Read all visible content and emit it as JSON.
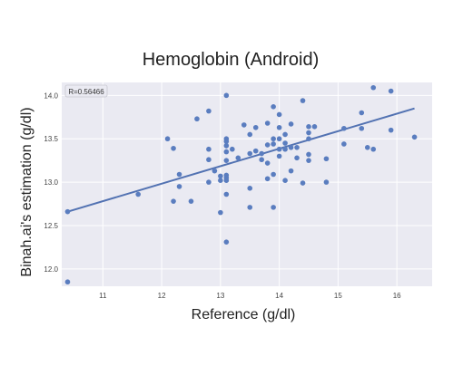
{
  "chart_data": {
    "type": "scatter",
    "title": "Hemoglobin (Android)",
    "xlabel": "Reference (g/dl)",
    "ylabel": "Binah.ai's estimation (g/dl)",
    "annotation": "R=0.56466",
    "xlim": [
      10.3,
      16.6
    ],
    "ylim": [
      11.8,
      14.15
    ],
    "x_ticks": [
      11,
      12,
      13,
      14,
      15,
      16
    ],
    "y_ticks": [
      12.0,
      12.5,
      13.0,
      13.5,
      14.0
    ],
    "x_tick_labels": [
      "11",
      "12",
      "13",
      "14",
      "15",
      "16"
    ],
    "y_tick_labels": [
      "12.0",
      "12.5",
      "13.0",
      "13.5",
      "14.0"
    ],
    "grid": true,
    "colors": {
      "point": "#5a7dbf",
      "line": "#5272b2",
      "plot_background": "#eaeaf2",
      "grid": "#ffffff"
    },
    "regression_line": {
      "x": [
        10.4,
        16.3
      ],
      "y": [
        12.66,
        13.85
      ]
    },
    "series": [
      {
        "x": [
          10.4,
          10.4,
          11.6,
          12.1,
          12.2,
          12.2,
          12.3,
          12.3,
          12.5,
          12.6,
          12.8,
          12.8,
          12.8,
          12.8,
          12.9,
          13.0,
          13.0,
          13.0,
          13.1,
          13.1,
          13.1,
          13.1,
          13.1,
          13.1,
          13.1,
          13.1,
          13.1,
          13.1,
          13.1,
          13.2,
          13.3,
          13.4,
          13.5,
          13.5,
          13.5,
          13.5,
          13.6,
          13.6,
          13.7,
          13.7,
          13.8,
          13.8,
          13.8,
          13.8,
          13.9,
          13.9,
          13.9,
          13.9,
          13.9,
          14.0,
          14.0,
          14.0,
          14.0,
          14.0,
          14.1,
          14.1,
          14.1,
          14.1,
          14.2,
          14.2,
          14.2,
          14.3,
          14.3,
          14.4,
          14.4,
          14.5,
          14.5,
          14.5,
          14.5,
          14.5,
          14.6,
          14.8,
          14.8,
          15.1,
          15.1,
          15.4,
          15.4,
          15.5,
          15.6,
          15.6,
          15.9,
          15.9,
          16.3
        ],
        "y": [
          12.66,
          11.85,
          12.86,
          13.5,
          13.39,
          12.78,
          13.09,
          12.95,
          12.78,
          13.73,
          13.82,
          13.38,
          13.26,
          13.0,
          13.13,
          13.07,
          12.65,
          13.02,
          14.0,
          13.5,
          13.47,
          13.42,
          13.35,
          13.25,
          13.08,
          13.05,
          13.02,
          12.86,
          12.31,
          13.38,
          13.28,
          13.66,
          13.55,
          13.33,
          12.93,
          12.71,
          13.63,
          13.36,
          13.33,
          13.26,
          13.68,
          13.43,
          13.22,
          13.04,
          13.87,
          13.5,
          13.44,
          13.09,
          12.71,
          13.78,
          13.63,
          13.5,
          13.38,
          13.3,
          13.55,
          13.45,
          13.38,
          13.02,
          13.67,
          13.4,
          13.13,
          13.4,
          13.28,
          13.94,
          12.99,
          13.64,
          13.57,
          13.5,
          13.32,
          13.25,
          13.64,
          13.27,
          13.0,
          13.62,
          13.44,
          13.8,
          13.62,
          13.4,
          14.09,
          13.38,
          14.05,
          13.6,
          13.52
        ]
      }
    ]
  }
}
